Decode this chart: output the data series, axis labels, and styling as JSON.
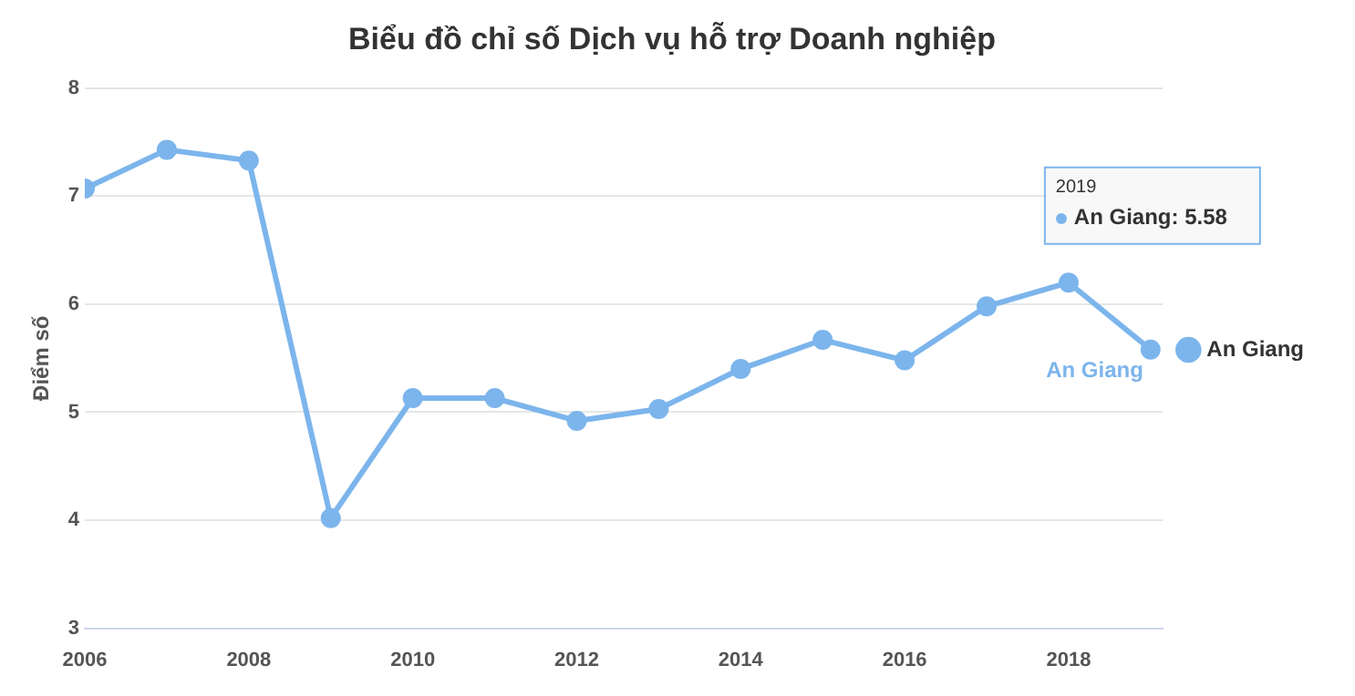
{
  "chart_data": {
    "type": "line",
    "title": "Biểu đồ chỉ số Dịch vụ hỗ trợ Doanh nghiệp",
    "ylabel": "Điểm số",
    "x": [
      2006,
      2007,
      2008,
      2009,
      2010,
      2011,
      2012,
      2013,
      2014,
      2015,
      2016,
      2017,
      2018,
      2019
    ],
    "series": [
      {
        "name": "An Giang",
        "color": "#7cb5ec",
        "values": [
          7.07,
          7.43,
          7.33,
          4.02,
          5.13,
          5.13,
          4.92,
          5.03,
          5.4,
          5.67,
          5.48,
          5.98,
          6.2,
          5.58
        ]
      }
    ],
    "xlim": [
      2006,
      2019.15
    ],
    "xticks": [
      2006,
      2008,
      2010,
      2012,
      2014,
      2016,
      2018
    ],
    "ylim": [
      3,
      8
    ],
    "yticks": [
      3,
      4,
      5,
      6,
      7,
      8
    ],
    "grid": "y",
    "legend": "right",
    "marker": "circle",
    "line_style": "solid",
    "annotations": [
      "2019",
      "An Giang: 5.58"
    ]
  }
}
